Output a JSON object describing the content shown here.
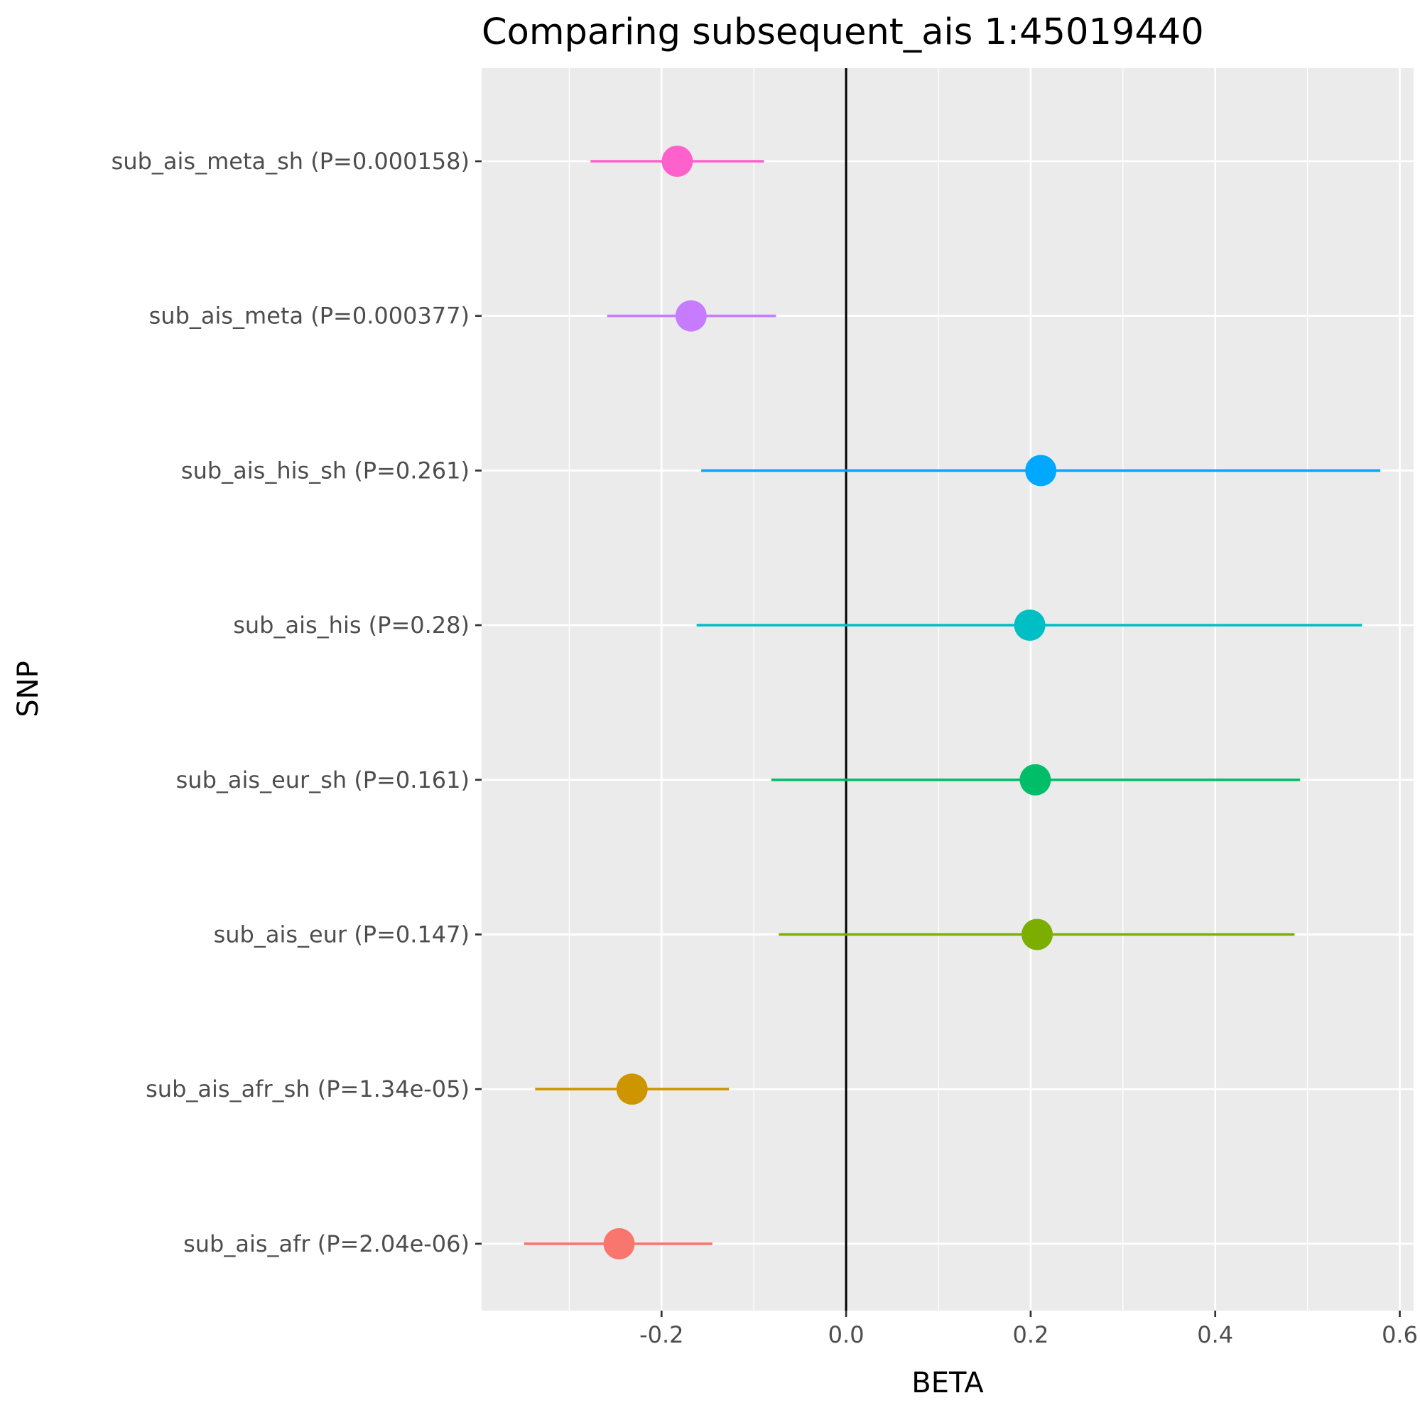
{
  "chart_data": {
    "type": "scatter",
    "title": "Comparing subsequent_ais 1:45019440",
    "xlabel": "BETA",
    "ylabel": "SNP",
    "xlim": [
      -0.395,
      0.615
    ],
    "x_ticks": [
      -0.2,
      0.0,
      0.2,
      0.4,
      0.6
    ],
    "x_tick_labels": [
      "-0.2",
      "0.0",
      "0.2",
      "0.4",
      "0.6"
    ],
    "reference_line_x": 0.0,
    "grid": true,
    "legend": "none",
    "series": [
      {
        "label": "sub_ais_meta_sh (P=0.000158)",
        "beta": -0.183,
        "lower": -0.277,
        "upper": -0.089,
        "color": "#FF61CC"
      },
      {
        "label": "sub_ais_meta (P=0.000377)",
        "beta": -0.168,
        "lower": -0.259,
        "upper": -0.076,
        "color": "#C77CFF"
      },
      {
        "label": "sub_ais_his_sh (P=0.261)",
        "beta": 0.211,
        "lower": -0.157,
        "upper": 0.579,
        "color": "#00A9FF"
      },
      {
        "label": "sub_ais_his (P=0.28)",
        "beta": 0.199,
        "lower": -0.162,
        "upper": 0.559,
        "color": "#00BFC4"
      },
      {
        "label": "sub_ais_eur_sh (P=0.161)",
        "beta": 0.205,
        "lower": -0.081,
        "upper": 0.492,
        "color": "#00BE67"
      },
      {
        "label": "sub_ais_eur (P=0.147)",
        "beta": 0.207,
        "lower": -0.073,
        "upper": 0.486,
        "color": "#7CAE00"
      },
      {
        "label": "sub_ais_afr_sh (P=1.34e-05)",
        "beta": -0.232,
        "lower": -0.337,
        "upper": -0.127,
        "color": "#CD9600"
      },
      {
        "label": "sub_ais_afr (P=2.04e-06)",
        "beta": -0.246,
        "lower": -0.349,
        "upper": -0.145,
        "color": "#F8766D"
      }
    ]
  }
}
